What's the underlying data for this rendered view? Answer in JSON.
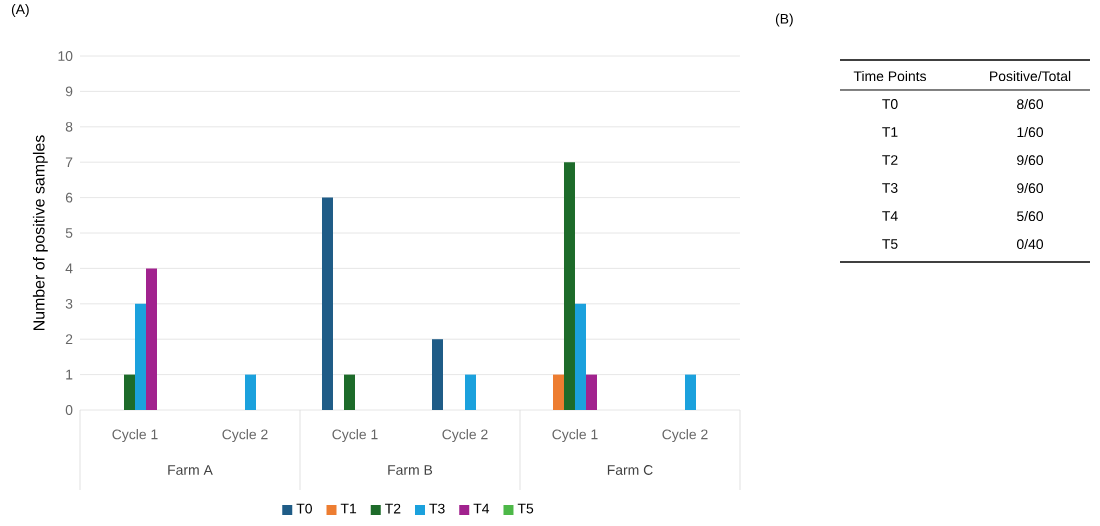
{
  "chart_data": [
    {
      "type": "bar",
      "title": "(A)",
      "ylabel": "Number of positive samples",
      "categories": [
        "Cycle 1",
        "Cycle 2",
        "Cycle 1",
        "Cycle 2",
        "Cycle 1",
        "Cycle 2"
      ],
      "annotations": [
        "Farm A",
        "Farm B",
        "Farm C"
      ],
      "series": [
        {
          "name": "T0",
          "color": "#1f5c87",
          "values": [
            0,
            0,
            6,
            2,
            0,
            0
          ]
        },
        {
          "name": "T1",
          "color": "#ed7d31",
          "values": [
            0,
            0,
            0,
            0,
            1,
            0
          ]
        },
        {
          "name": "T2",
          "color": "#1d6b2a",
          "values": [
            1,
            0,
            1,
            0,
            7,
            0
          ]
        },
        {
          "name": "T3",
          "color": "#1ba1dd",
          "values": [
            3,
            1,
            0,
            1,
            3,
            1
          ]
        },
        {
          "name": "T4",
          "color": "#a1228e",
          "values": [
            4,
            0,
            0,
            0,
            1,
            0
          ]
        },
        {
          "name": "T5",
          "color": "#4db848",
          "values": [
            0,
            0,
            0,
            0,
            0,
            0
          ]
        }
      ],
      "ylim": [
        0,
        10
      ],
      "yticks": [
        0,
        1,
        2,
        3,
        4,
        5,
        6,
        7,
        8,
        9,
        10
      ],
      "grid": "y",
      "legend": "bottom"
    },
    {
      "type": "other",
      "title": "(B)",
      "annotations": [
        "Time Points",
        "Positive/Total",
        "T0",
        "8/60",
        "T1",
        "1/60",
        "T2",
        "9/60",
        "T3",
        "9/60",
        "T4",
        "5/60",
        "T5",
        "0/40"
      ]
    }
  ]
}
